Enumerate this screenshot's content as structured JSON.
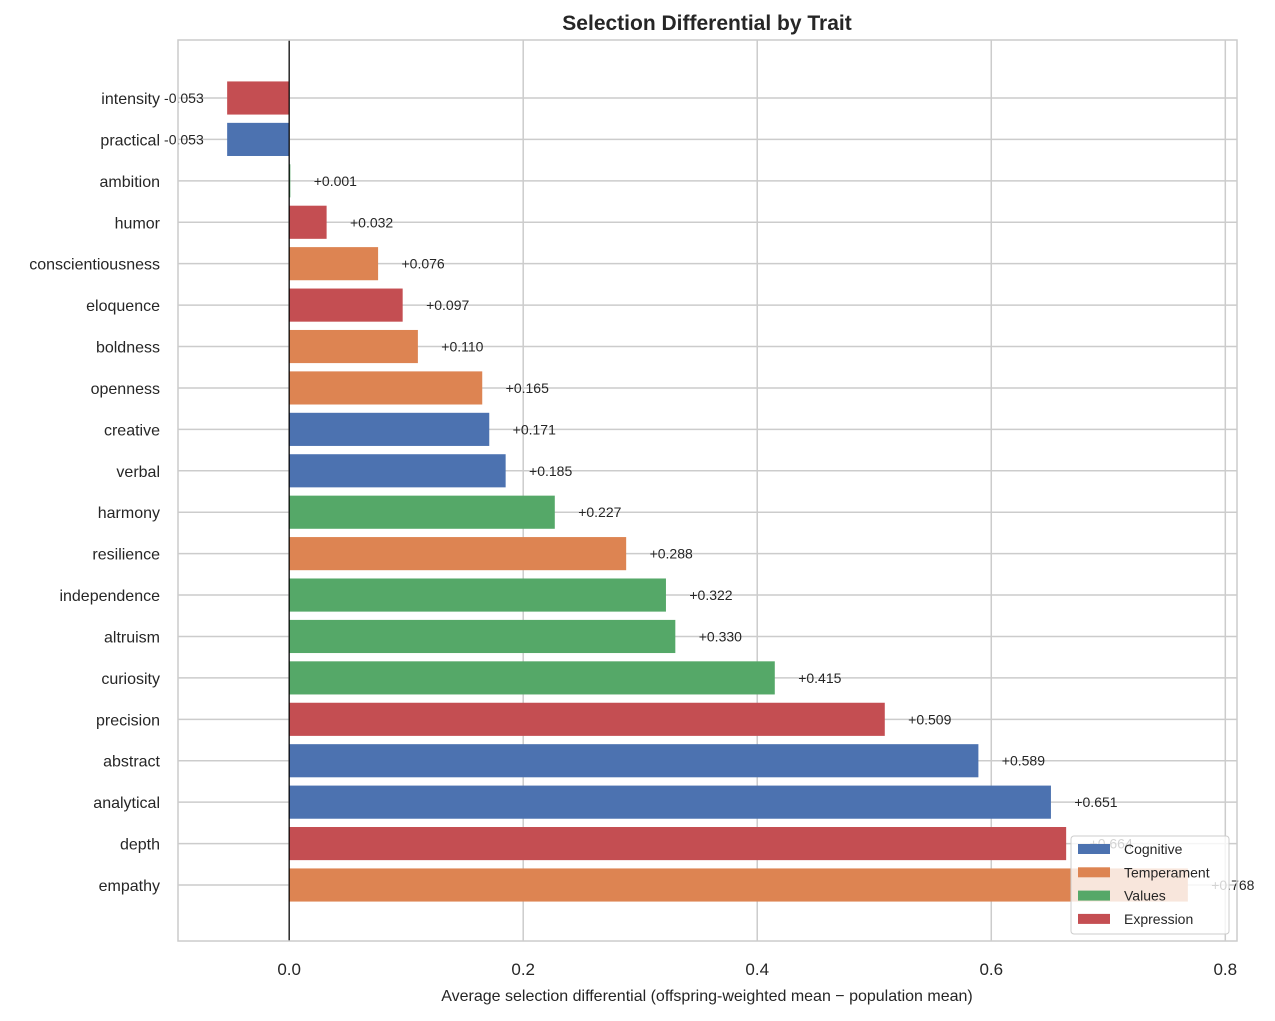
{
  "chart_data": {
    "type": "bar",
    "orientation": "horizontal",
    "title": "Selection Differential by Trait",
    "xlabel": "Average selection differential (offspring-weighted mean − population mean)",
    "ylabel": "",
    "xlim": [
      -0.095,
      0.81
    ],
    "xticks": [
      "0.0",
      "0.2",
      "0.4",
      "0.6",
      "0.8"
    ],
    "xtick_values": [
      0.0,
      0.2,
      0.4,
      0.6,
      0.8
    ],
    "grid": true,
    "legend_position": "bottom-right",
    "groups": [
      {
        "name": "Cognitive",
        "color": "#4c72b0"
      },
      {
        "name": "Temperament",
        "color": "#dd8452"
      },
      {
        "name": "Values",
        "color": "#55a868"
      },
      {
        "name": "Expression",
        "color": "#c44e52"
      }
    ],
    "bars": [
      {
        "trait": "intensity",
        "value": -0.053,
        "label": "-0.053",
        "group": "Expression"
      },
      {
        "trait": "practical",
        "value": -0.053,
        "label": "-0.053",
        "group": "Cognitive"
      },
      {
        "trait": "ambition",
        "value": 0.001,
        "label": "+0.001",
        "group": "Values"
      },
      {
        "trait": "humor",
        "value": 0.032,
        "label": "+0.032",
        "group": "Expression"
      },
      {
        "trait": "conscientiousness",
        "value": 0.076,
        "label": "+0.076",
        "group": "Temperament"
      },
      {
        "trait": "eloquence",
        "value": 0.097,
        "label": "+0.097",
        "group": "Expression"
      },
      {
        "trait": "boldness",
        "value": 0.11,
        "label": "+0.110",
        "group": "Temperament"
      },
      {
        "trait": "openness",
        "value": 0.165,
        "label": "+0.165",
        "group": "Temperament"
      },
      {
        "trait": "creative",
        "value": 0.171,
        "label": "+0.171",
        "group": "Cognitive"
      },
      {
        "trait": "verbal",
        "value": 0.185,
        "label": "+0.185",
        "group": "Cognitive"
      },
      {
        "trait": "harmony",
        "value": 0.227,
        "label": "+0.227",
        "group": "Values"
      },
      {
        "trait": "resilience",
        "value": 0.288,
        "label": "+0.288",
        "group": "Temperament"
      },
      {
        "trait": "independence",
        "value": 0.322,
        "label": "+0.322",
        "group": "Values"
      },
      {
        "trait": "altruism",
        "value": 0.33,
        "label": "+0.330",
        "group": "Values"
      },
      {
        "trait": "curiosity",
        "value": 0.415,
        "label": "+0.415",
        "group": "Values"
      },
      {
        "trait": "precision",
        "value": 0.509,
        "label": "+0.509",
        "group": "Expression"
      },
      {
        "trait": "abstract",
        "value": 0.589,
        "label": "+0.589",
        "group": "Cognitive"
      },
      {
        "trait": "analytical",
        "value": 0.651,
        "label": "+0.651",
        "group": "Cognitive"
      },
      {
        "trait": "depth",
        "value": 0.664,
        "label": "+0.664",
        "group": "Expression"
      },
      {
        "trait": "empathy",
        "value": 0.768,
        "label": "+0.768",
        "group": "Temperament"
      }
    ]
  }
}
